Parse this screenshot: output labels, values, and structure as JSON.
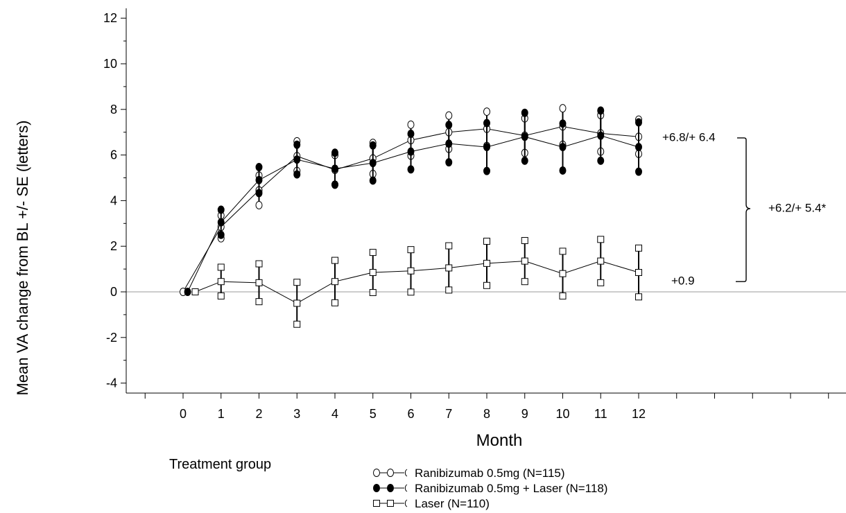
{
  "chart_data": {
    "type": "line",
    "title": "",
    "xlabel": "Month",
    "ylabel": "Mean VA change from BL +/- SE (letters)",
    "xlim": [
      -1,
      17
    ],
    "ylim": [
      -4.5,
      12.3
    ],
    "x_ticks": [
      0,
      1,
      2,
      3,
      4,
      5,
      6,
      7,
      8,
      9,
      10,
      11,
      12
    ],
    "y_ticks": [
      -4,
      -2,
      0,
      2,
      4,
      6,
      8,
      10,
      12
    ],
    "x_tick_labels": [
      "0",
      "1",
      "2",
      "3",
      "4",
      "5",
      "6",
      "7",
      "8",
      "9",
      "10",
      "11",
      "12"
    ],
    "y_tick_labels": [
      "-4",
      "-2",
      "0",
      "2",
      "4",
      "6",
      "8",
      "10",
      "12"
    ],
    "reference_line_y": 0,
    "legend_title": "Treatment group",
    "legend_position": "bottom",
    "series": [
      {
        "name": "Ranibizumab 0.5mg (N=115)",
        "marker": "open-circle",
        "x": [
          0,
          1,
          2,
          3,
          4,
          5,
          6,
          7,
          8,
          9,
          10,
          11,
          12
        ],
        "y": [
          0,
          2.85,
          4.45,
          5.95,
          5.35,
          5.85,
          6.65,
          7.0,
          7.15,
          6.85,
          7.25,
          6.95,
          6.8
        ],
        "se": [
          0,
          0.5,
          0.65,
          0.65,
          0.65,
          0.68,
          0.68,
          0.73,
          0.75,
          0.76,
          0.8,
          0.8,
          0.75
        ]
      },
      {
        "name": "Ranibizumab 0.5mg + Laser (N=118)",
        "marker": "filled-circle",
        "x": [
          0,
          1,
          2,
          3,
          4,
          5,
          6,
          7,
          8,
          9,
          10,
          11,
          12
        ],
        "y": [
          0,
          3.05,
          4.9,
          5.8,
          5.4,
          5.65,
          6.15,
          6.5,
          6.35,
          6.8,
          6.35,
          6.85,
          6.35
        ],
        "se": [
          0,
          0.55,
          0.57,
          0.65,
          0.7,
          0.77,
          0.78,
          0.82,
          1.05,
          1.05,
          1.03,
          1.1,
          1.08
        ]
      },
      {
        "name": "Laser (N=110)",
        "marker": "open-square",
        "x": [
          0,
          1,
          2,
          3,
          4,
          5,
          6,
          7,
          8,
          9,
          10,
          11,
          12
        ],
        "y": [
          0,
          0.45,
          0.4,
          -0.5,
          0.45,
          0.85,
          0.92,
          1.05,
          1.25,
          1.35,
          0.8,
          1.35,
          0.85
        ],
        "se": [
          0,
          0.63,
          0.83,
          0.92,
          0.93,
          0.88,
          0.93,
          0.97,
          0.97,
          0.9,
          0.98,
          0.95,
          1.07
        ]
      }
    ],
    "annotations": [
      {
        "text": "+6.8/+ 6.4",
        "y": 6.8
      },
      {
        "text": "+6.2/+ 5.4*",
        "y": 3.7
      },
      {
        "text": "+0.9",
        "y": 0.5
      }
    ]
  }
}
